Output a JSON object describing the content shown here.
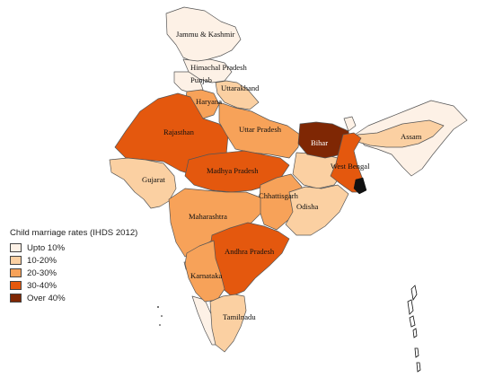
{
  "legend": {
    "title": "Child marriage rates (IHDS 2012)",
    "items": [
      {
        "label": "Upto 10%",
        "color": "#fdf1e6"
      },
      {
        "label": "10-20%",
        "color": "#fbd0a2"
      },
      {
        "label": "20-30%",
        "color": "#f7a259"
      },
      {
        "label": "30-40%",
        "color": "#e4580e"
      },
      {
        "label": "Over 40%",
        "color": "#7f2704"
      }
    ]
  },
  "states": [
    {
      "name": "Jammu & Kashmir",
      "class": 0
    },
    {
      "name": "Himachal Pradesh",
      "class": 0
    },
    {
      "name": "Punjab",
      "class": 0
    },
    {
      "name": "Uttarakhand",
      "class": 1
    },
    {
      "name": "Haryana",
      "class": 2
    },
    {
      "name": "Rajasthan",
      "class": 3
    },
    {
      "name": "Uttar Pradesh",
      "class": 2
    },
    {
      "name": "Bihar",
      "class": 4
    },
    {
      "name": "Assam",
      "class": 1
    },
    {
      "name": "West Bengal",
      "class": 3
    },
    {
      "name": "Gujarat",
      "class": 1
    },
    {
      "name": "Madhya Pradesh",
      "class": 3
    },
    {
      "name": "Chhattisgarh",
      "class": 2
    },
    {
      "name": "Odisha",
      "class": 1
    },
    {
      "name": "Maharashtra",
      "class": 2
    },
    {
      "name": "Andhra Pradesh",
      "class": 3
    },
    {
      "name": "Karnataka",
      "class": 2
    },
    {
      "name": "Tamilnadu",
      "class": 1
    }
  ],
  "other_regions": {
    "class": 0
  }
}
